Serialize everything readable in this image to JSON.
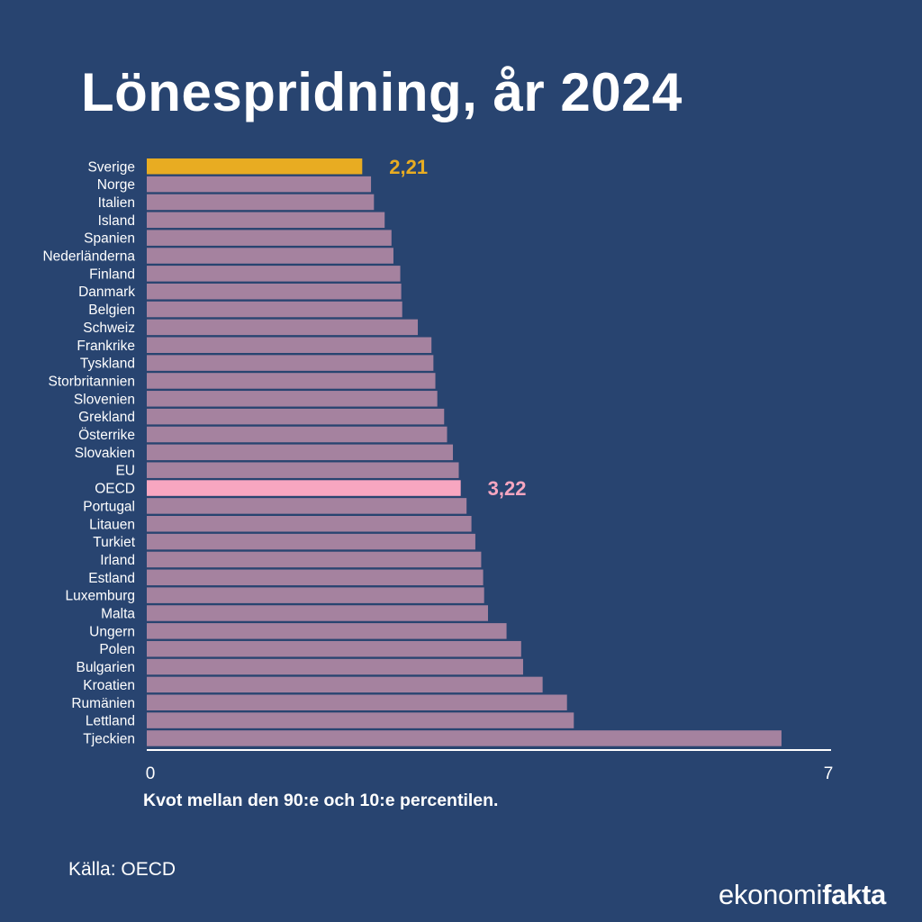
{
  "title": "Lönespridning, år 2024",
  "xlabel": "Kvot mellan den 90:e och 10:e percentilen.",
  "source": "Källa: OECD",
  "logo": {
    "part1": "ekonomi",
    "part2": "fakta"
  },
  "colors": {
    "background": "#284470",
    "bar": "#a5829f",
    "highlight_sverige": "#e8ac22",
    "highlight_oecd": "#f7a6c0",
    "text": "#ffffff"
  },
  "chart_data": {
    "type": "bar",
    "orientation": "horizontal",
    "categories": [
      "Sverige",
      "Norge",
      "Italien",
      "Island",
      "Spanien",
      "Nederländerna",
      "Finland",
      "Danmark",
      "Belgien",
      "Schweiz",
      "Frankrike",
      "Tyskland",
      "Storbritannien",
      "Slovenien",
      "Grekland",
      "Österrike",
      "Slovakien",
      "EU",
      "OECD",
      "Portugal",
      "Litauen",
      "Turkiet",
      "Irland",
      "Estland",
      "Luxemburg",
      "Malta",
      "Ungern",
      "Polen",
      "Bulgarien",
      "Kroatien",
      "Rumänien",
      "Lettland",
      "Tjeckien"
    ],
    "values": [
      2.21,
      2.3,
      2.33,
      2.44,
      2.51,
      2.53,
      2.6,
      2.61,
      2.62,
      2.78,
      2.92,
      2.94,
      2.96,
      2.98,
      3.05,
      3.08,
      3.14,
      3.2,
      3.22,
      3.28,
      3.33,
      3.37,
      3.43,
      3.45,
      3.46,
      3.5,
      3.69,
      3.84,
      3.86,
      4.06,
      4.31,
      4.38,
      6.51
    ],
    "value_labels": [
      {
        "category": "Sverige",
        "text": "2,21",
        "color": "#e8ac22"
      },
      {
        "category": "OECD",
        "text": "3,22",
        "color": "#f7a6c0"
      }
    ],
    "highlight": {
      "Sverige": "#e8ac22",
      "OECD": "#f7a6c0"
    },
    "xlim": [
      0,
      7
    ],
    "xticks": [
      "0",
      "7"
    ],
    "xlabel": "Kvot mellan den 90:e och 10:e percentilen.",
    "grid": false,
    "legend": "none"
  }
}
